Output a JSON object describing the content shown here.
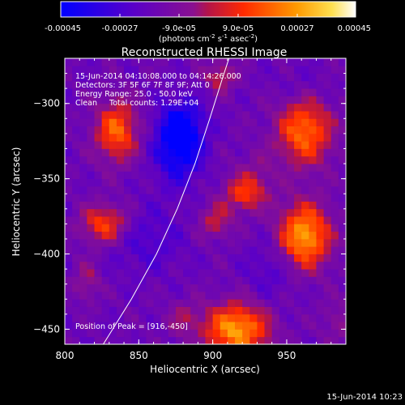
{
  "colorbar": {
    "ticks": [
      "-0.00045",
      "-0.00027",
      "-9.0e-05",
      "9.0e-05",
      "0.00027",
      "0.00045"
    ],
    "unit_label": "(photons cm",
    "unit_sup1": "-2",
    "unit_mid1": " s",
    "unit_sup2": "-1",
    "unit_mid2": " asec",
    "unit_sup3": "-2",
    "unit_end": ")",
    "range": [
      -0.00045,
      0.00045
    ]
  },
  "footer_timestamp": "15-Jun-2014 10:23",
  "chart_data": {
    "type": "heatmap",
    "title": "Reconstructed RHESSI Image",
    "xlabel": "Heliocentric X (arcsec)",
    "ylabel": "Heliocentric Y (arcsec)",
    "xlim": [
      800,
      990
    ],
    "ylim": [
      -460,
      -270
    ],
    "xticks": [
      800,
      850,
      900,
      950
    ],
    "yticks": [
      -300,
      -350,
      -400,
      -450
    ],
    "annotations": [
      "15-Jun-2014 04:10:08.000 to 04:14:26.000",
      "Detectors: 3F 5F 6F 7F 8F 9F; Att 0",
      "Energy Range: 25.0 - 50.0 keV",
      "Clean     Total counts: 1.29E+04"
    ],
    "peak_label": "Position of Peak = [916,-450]",
    "peak": [
      916,
      -450
    ],
    "limb_curve": [
      [
        826,
        -460
      ],
      [
        845,
        -430
      ],
      [
        862,
        -400
      ],
      [
        876,
        -370
      ],
      [
        888,
        -340
      ],
      [
        898,
        -310
      ],
      [
        906,
        -285
      ],
      [
        911,
        -270
      ]
    ],
    "sources": [
      {
        "x": 835,
        "y": -318,
        "amp": 0.00034,
        "sx": 10,
        "sy": 14
      },
      {
        "x": 827,
        "y": -380,
        "amp": 0.0003,
        "sx": 11,
        "sy": 9
      },
      {
        "x": 815,
        "y": -418,
        "amp": 0.00014,
        "sx": 6,
        "sy": 9
      },
      {
        "x": 905,
        "y": -282,
        "amp": 0.0002,
        "sx": 7,
        "sy": 7
      },
      {
        "x": 928,
        "y": -345,
        "amp": 8e-05,
        "sx": 10,
        "sy": 10
      },
      {
        "x": 962,
        "y": -318,
        "amp": 0.00036,
        "sx": 13,
        "sy": 16
      },
      {
        "x": 922,
        "y": -360,
        "amp": 0.00026,
        "sx": 10,
        "sy": 8
      },
      {
        "x": 902,
        "y": -378,
        "amp": 0.00018,
        "sx": 8,
        "sy": 8
      },
      {
        "x": 962,
        "y": -388,
        "amp": 0.00045,
        "sx": 12,
        "sy": 15
      },
      {
        "x": 916,
        "y": -450,
        "amp": 0.00044,
        "sx": 15,
        "sy": 12
      },
      {
        "x": 880,
        "y": -443,
        "amp": 0.00012,
        "sx": 8,
        "sy": 8
      },
      {
        "x": 985,
        "y": -445,
        "amp": 0.0001,
        "sx": 8,
        "sy": 10
      },
      {
        "x": 877,
        "y": -328,
        "amp": -0.00034,
        "sx": 11,
        "sy": 16
      },
      {
        "x": 880,
        "y": -312,
        "amp": -0.00015,
        "sx": 10,
        "sy": 10
      },
      {
        "x": 940,
        "y": -410,
        "amp": -9e-05,
        "sx": 12,
        "sy": 14
      },
      {
        "x": 855,
        "y": -390,
        "amp": -0.0001,
        "sx": 18,
        "sy": 16
      },
      {
        "x": 960,
        "y": -290,
        "amp": -6e-05,
        "sx": 14,
        "sy": 10
      }
    ]
  }
}
